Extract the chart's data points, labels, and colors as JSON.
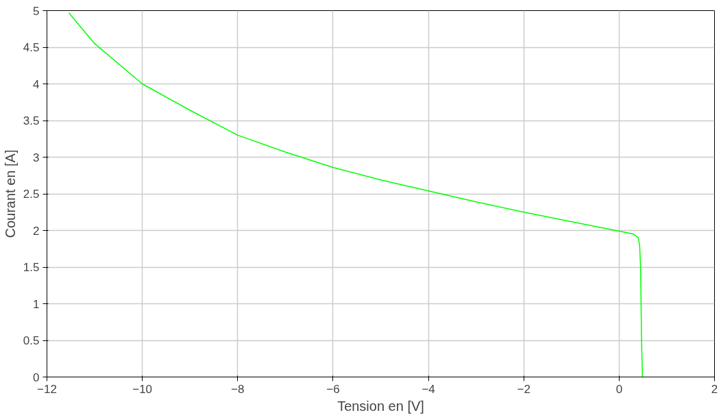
{
  "chart_data": {
    "type": "line",
    "xlabel": "Tension en [V]",
    "ylabel": "Courant en [A]",
    "x": [
      -11.54,
      -11,
      -10,
      -9,
      -8,
      -7,
      -6,
      -5,
      -4,
      -3,
      -2,
      -1,
      0,
      0.3,
      0.4,
      0.43,
      0.45,
      0.47,
      0.49
    ],
    "series": [
      {
        "color": "#00ff00",
        "values": [
          4.97,
          4.55,
          4.0,
          3.64,
          3.3,
          3.07,
          2.86,
          2.69,
          2.54,
          2.39,
          2.25,
          2.12,
          1.99,
          1.95,
          1.9,
          1.8,
          1.5,
          0.5,
          0
        ]
      }
    ],
    "xlim": [
      -12,
      2
    ],
    "ylim": [
      0,
      5
    ],
    "xticks": [
      -12,
      -10,
      -8,
      -6,
      -4,
      -2,
      0,
      2
    ],
    "yticks": [
      0,
      0.5,
      1,
      1.5,
      2,
      2.5,
      3,
      3.5,
      4,
      4.5,
      5
    ],
    "grid": true,
    "marker": "none",
    "line_style": "solid"
  }
}
